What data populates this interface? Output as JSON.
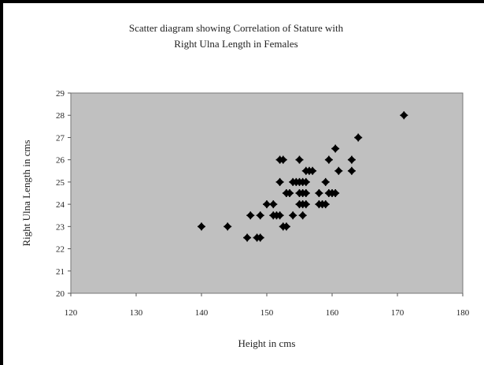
{
  "chart_data": {
    "type": "scatter",
    "title_line1": "Scatter diagram showing Correlation of Stature with",
    "title_line2": "Right Ulna Length in Females",
    "xlabel": "Height in cms",
    "ylabel": "Right Ulna Length in cms",
    "xlim": [
      120,
      180
    ],
    "ylim": [
      20,
      29
    ],
    "xticks": [
      "120",
      "130",
      "140",
      "150",
      "160",
      "170",
      "180"
    ],
    "yticks": [
      "20",
      "21",
      "22",
      "23",
      "24",
      "25",
      "26",
      "27",
      "28",
      "29"
    ],
    "grid": false,
    "plot_background": "#c0c0c0",
    "marker_color": "#000000",
    "points": [
      [
        140,
        23
      ],
      [
        144,
        23
      ],
      [
        147,
        22.5
      ],
      [
        148.5,
        22.5
      ],
      [
        149,
        22.5
      ],
      [
        147.5,
        23.5
      ],
      [
        149,
        23.5
      ],
      [
        151,
        23.5
      ],
      [
        151.5,
        23.5
      ],
      [
        152,
        23.5
      ],
      [
        150,
        24
      ],
      [
        151,
        24
      ],
      [
        153,
        23
      ],
      [
        152.5,
        23
      ],
      [
        154,
        23.5
      ],
      [
        155.5,
        23.5
      ],
      [
        152,
        25
      ],
      [
        152,
        26
      ],
      [
        152.5,
        26
      ],
      [
        153,
        24.5
      ],
      [
        153.5,
        24.5
      ],
      [
        154,
        25
      ],
      [
        154.5,
        25
      ],
      [
        155,
        25
      ],
      [
        155.5,
        25
      ],
      [
        155,
        24.5
      ],
      [
        155.5,
        24.5
      ],
      [
        156,
        24.5
      ],
      [
        155,
        24
      ],
      [
        155.5,
        24
      ],
      [
        156,
        24
      ],
      [
        155,
        26
      ],
      [
        156,
        25.5
      ],
      [
        156.5,
        25.5
      ],
      [
        157,
        25.5
      ],
      [
        156,
        25
      ],
      [
        158,
        24.5
      ],
      [
        158,
        24
      ],
      [
        158.5,
        24
      ],
      [
        159,
        24
      ],
      [
        159,
        25
      ],
      [
        159.5,
        24.5
      ],
      [
        160,
        24.5
      ],
      [
        160.5,
        24.5
      ],
      [
        159.5,
        26
      ],
      [
        160.5,
        26.5
      ],
      [
        161,
        25.5
      ],
      [
        163,
        26
      ],
      [
        163,
        25.5
      ],
      [
        164,
        27
      ],
      [
        171,
        28
      ]
    ]
  }
}
